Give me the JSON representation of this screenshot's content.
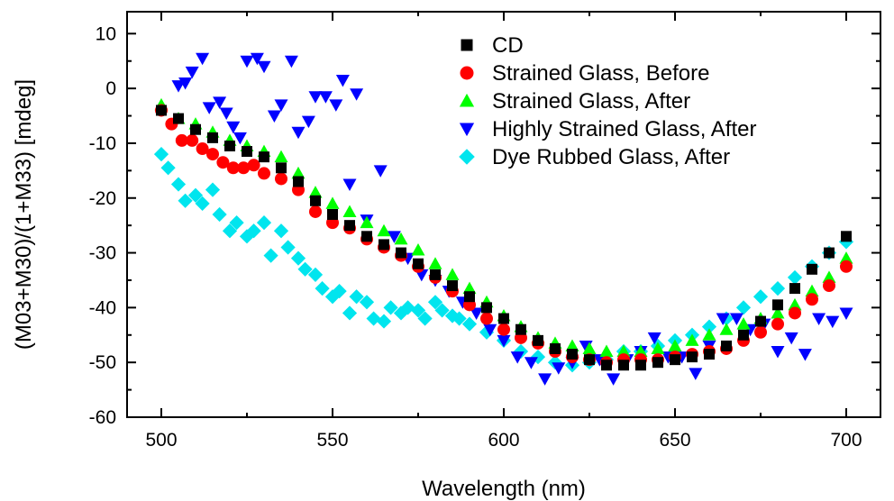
{
  "chart_data": {
    "type": "scatter",
    "title": "",
    "xlabel": "Wavelength (nm)",
    "ylabel": "(M03+M30)/(1+M33) [mdeg]",
    "xlim": [
      490,
      710
    ],
    "ylim": [
      -60,
      14
    ],
    "x_ticks": [
      500,
      550,
      600,
      650,
      700
    ],
    "y_ticks": [
      10,
      0,
      -10,
      -20,
      -30,
      -40,
      -50,
      -60
    ],
    "grid": false,
    "legend_position": "top-right",
    "series": [
      {
        "name": "CD",
        "marker": "square",
        "color": "#000000",
        "x": [
          500,
          505,
          510,
          515,
          520,
          525,
          530,
          535,
          540,
          545,
          550,
          555,
          560,
          565,
          570,
          575,
          580,
          585,
          590,
          595,
          600,
          605,
          610,
          615,
          620,
          625,
          630,
          635,
          640,
          645,
          650,
          655,
          660,
          665,
          670,
          675,
          680,
          685,
          690,
          695,
          700
        ],
        "y": [
          -4,
          -5.5,
          -7.5,
          -9,
          -10.5,
          -11.5,
          -12.5,
          -14.5,
          -17,
          -20.5,
          -23,
          -25,
          -27,
          -28.5,
          -30,
          -32,
          -34,
          -36,
          -38,
          -40,
          -42,
          -44,
          -46,
          -47.5,
          -48.5,
          -49.5,
          -50.5,
          -50.5,
          -50.5,
          -50,
          -49.5,
          -49,
          -48.5,
          -47,
          -45,
          -42.5,
          -39.5,
          -36.5,
          -33,
          -30,
          -27
        ]
      },
      {
        "name": "Strained Glass, Before",
        "marker": "circle",
        "color": "#ff0000",
        "x": [
          500,
          503,
          506,
          509,
          512,
          515,
          518,
          521,
          524,
          527,
          530,
          535,
          540,
          545,
          550,
          555,
          560,
          565,
          570,
          575,
          580,
          585,
          590,
          595,
          600,
          605,
          610,
          615,
          620,
          625,
          630,
          635,
          640,
          645,
          650,
          655,
          660,
          665,
          670,
          675,
          680,
          685,
          690,
          695,
          700
        ],
        "y": [
          -4,
          -6.5,
          -9.5,
          -9.5,
          -11,
          -12,
          -13.5,
          -14.5,
          -14.5,
          -14,
          -15.5,
          -16.5,
          -18.5,
          -22.5,
          -24.5,
          -25.5,
          -27.5,
          -29,
          -30.5,
          -32.5,
          -34.5,
          -37,
          -39.5,
          -42,
          -44,
          -45.5,
          -46.5,
          -48,
          -49,
          -49.5,
          -50,
          -49.5,
          -49.5,
          -49.5,
          -49,
          -48.5,
          -48,
          -47.5,
          -46,
          -44.5,
          -43,
          -41,
          -38.5,
          -36,
          -32.5
        ]
      },
      {
        "name": "Strained Glass, After",
        "marker": "triangle-up",
        "color": "#00ff00",
        "x": [
          500,
          505,
          510,
          515,
          520,
          525,
          530,
          535,
          540,
          545,
          550,
          555,
          560,
          565,
          570,
          575,
          580,
          585,
          590,
          595,
          600,
          605,
          610,
          615,
          620,
          625,
          630,
          635,
          640,
          645,
          650,
          655,
          660,
          665,
          670,
          675,
          680,
          685,
          690,
          695,
          700
        ],
        "y": [
          -3,
          -5.5,
          -6.5,
          -8,
          -9.5,
          -10.5,
          -11.5,
          -12.5,
          -15.5,
          -19,
          -21,
          -22.5,
          -24.5,
          -26,
          -27.5,
          -29.5,
          -32,
          -34,
          -36.5,
          -39,
          -41.5,
          -43.5,
          -45.5,
          -46.5,
          -47,
          -47.5,
          -48,
          -48,
          -48,
          -47.5,
          -47,
          -46,
          -45,
          -44,
          -43,
          -42,
          -41,
          -39.5,
          -37,
          -34.5,
          -31
        ]
      },
      {
        "name": "Highly Strained Glass, After",
        "marker": "triangle-down",
        "color": "#0000ff",
        "x": [
          505,
          507,
          509,
          512,
          514,
          517,
          519,
          521,
          523,
          525,
          528,
          530,
          533,
          535,
          538,
          540,
          543,
          545,
          548,
          551,
          553,
          555,
          557,
          560,
          564,
          568,
          572,
          576,
          580,
          584,
          588,
          592,
          596,
          600,
          604,
          608,
          612,
          616,
          620,
          624,
          628,
          632,
          636,
          640,
          644,
          648,
          652,
          656,
          660,
          664,
          668,
          672,
          676,
          680,
          684,
          688,
          692,
          696,
          700
        ],
        "y": [
          0.5,
          1,
          3,
          5.5,
          -3.5,
          -2.5,
          -4.5,
          -7,
          -9,
          5,
          5.5,
          4,
          -5,
          -3,
          5,
          -8,
          -6,
          -1.5,
          -1.5,
          -3,
          1.5,
          -17.5,
          -1,
          -24,
          -15,
          -27,
          -31,
          -34,
          -35,
          -37,
          -39,
          -41,
          -44,
          -46,
          -49,
          -50,
          -53,
          -51,
          -50,
          -47,
          -49.5,
          -53,
          -49.5,
          -48,
          -45.5,
          -49,
          -49,
          -52,
          -47,
          -42,
          -42,
          -44,
          -43,
          -48,
          -45.5,
          -48.5,
          -42,
          -42.5,
          -41
        ]
      },
      {
        "name": "Dye Rubbed Glass, After",
        "marker": "diamond",
        "color": "#00e5ee",
        "x": [
          500,
          502,
          505,
          507,
          510,
          512,
          515,
          517,
          520,
          522,
          525,
          527,
          530,
          532,
          535,
          537,
          540,
          542,
          545,
          547,
          550,
          552,
          555,
          557,
          560,
          562,
          565,
          567,
          570,
          572,
          575,
          577,
          580,
          582,
          585,
          587,
          590,
          595,
          600,
          605,
          610,
          615,
          620,
          625,
          630,
          635,
          640,
          645,
          650,
          655,
          660,
          665,
          670,
          675,
          680,
          685,
          690,
          695,
          700
        ],
        "y": [
          -12,
          -14.5,
          -17.5,
          -20.5,
          -19.5,
          -21,
          -18.5,
          -23,
          -26,
          -24.5,
          -27,
          -26,
          -24.5,
          -30.5,
          -26,
          -29,
          -31,
          -33,
          -34,
          -36.5,
          -38,
          -37,
          -41,
          -38,
          -39,
          -42,
          -42.5,
          -40,
          -41,
          -40,
          -40.5,
          -42,
          -39,
          -40.5,
          -41.5,
          -42,
          -43,
          -44.5,
          -46,
          -48,
          -49,
          -50,
          -50.5,
          -50,
          -49.5,
          -48,
          -48,
          -47,
          -46,
          -45,
          -43.5,
          -42,
          -40,
          -38,
          -36.5,
          -34.5,
          -32.5,
          -30,
          -28
        ]
      }
    ]
  }
}
